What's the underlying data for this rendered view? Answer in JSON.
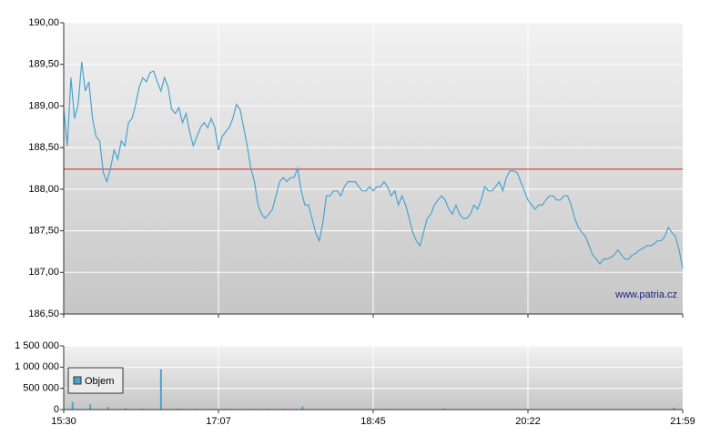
{
  "chart_data": [
    {
      "type": "line",
      "ylim": [
        186.5,
        190
      ],
      "yticks": [
        {
          "value": 186.5,
          "label": "186,50"
        },
        {
          "value": 187,
          "label": "187,00"
        },
        {
          "value": 187.5,
          "label": "187,50"
        },
        {
          "value": 188,
          "label": "188,00"
        },
        {
          "value": 188.5,
          "label": "188,50"
        },
        {
          "value": 189,
          "label": "189,00"
        },
        {
          "value": 189.5,
          "label": "189,50"
        },
        {
          "value": 190,
          "label": "190,00"
        }
      ],
      "grid": true,
      "reference_line": {
        "value": 188.24,
        "color": "#cc2222"
      },
      "annotation": "www.patria.cz",
      "series": [
        {
          "color": "#4aa3cf",
          "values": [
            188.96,
            188.52,
            189.34,
            188.85,
            189.02,
            189.53,
            189.18,
            189.29,
            188.85,
            188.63,
            188.58,
            188.2,
            188.09,
            188.25,
            188.47,
            188.36,
            188.58,
            188.52,
            188.8,
            188.85,
            189.02,
            189.23,
            189.34,
            189.29,
            189.4,
            189.42,
            189.29,
            189.18,
            189.34,
            189.23,
            188.96,
            188.91,
            188.98,
            188.8,
            188.91,
            188.69,
            188.52,
            188.63,
            188.74,
            188.8,
            188.74,
            188.85,
            188.74,
            188.47,
            188.63,
            188.69,
            188.74,
            188.85,
            189.02,
            188.96,
            188.74,
            188.52,
            188.25,
            188.09,
            187.81,
            187.7,
            187.65,
            187.7,
            187.76,
            187.92,
            188.09,
            188.14,
            188.09,
            188.14,
            188.14,
            188.25,
            187.98,
            187.81,
            187.81,
            187.65,
            187.48,
            187.38,
            187.59,
            187.92,
            187.92,
            187.98,
            187.98,
            187.92,
            188.03,
            188.09,
            188.09,
            188.09,
            188.03,
            187.98,
            187.98,
            188.03,
            187.98,
            188.03,
            188.03,
            188.09,
            188.03,
            187.92,
            187.98,
            187.81,
            187.92,
            187.81,
            187.65,
            187.48,
            187.38,
            187.32,
            187.48,
            187.65,
            187.7,
            187.81,
            187.87,
            187.92,
            187.87,
            187.76,
            187.7,
            187.81,
            187.7,
            187.65,
            187.65,
            187.7,
            187.81,
            187.76,
            187.87,
            188.03,
            187.98,
            187.98,
            188.03,
            188.09,
            187.98,
            188.14,
            188.22,
            188.22,
            188.2,
            188.09,
            187.98,
            187.87,
            187.81,
            187.76,
            187.81,
            187.81,
            187.87,
            187.92,
            187.92,
            187.87,
            187.87,
            187.92,
            187.92,
            187.81,
            187.65,
            187.54,
            187.48,
            187.43,
            187.32,
            187.21,
            187.16,
            187.1,
            187.16,
            187.16,
            187.18,
            187.21,
            187.27,
            187.21,
            187.16,
            187.16,
            187.21,
            187.23,
            187.27,
            187.29,
            187.32,
            187.32,
            187.34,
            187.38,
            187.38,
            187.43,
            187.54,
            187.48,
            187.43,
            187.27,
            187.05
          ]
        }
      ]
    },
    {
      "type": "bar",
      "ylim": [
        0,
        1500000
      ],
      "yticks": [
        0,
        {
          "value": 500000,
          "label": "500 000"
        },
        {
          "value": 1000000,
          "label": "1 000 000"
        },
        {
          "value": 1500000,
          "label": "1 500 000"
        }
      ],
      "xticks": [
        "15:30",
        "17:07",
        "18:45",
        "20:22",
        "21:59"
      ],
      "grid": true,
      "legend": "top-left",
      "series": [
        {
          "name": "Objem",
          "color": "#4aa3cf",
          "values": [
            180000,
            120000,
            60000,
            30000,
            20000,
            950000,
            20000,
            15000,
            15000,
            20000,
            15000,
            15000,
            15000,
            70000,
            15000,
            10000,
            10000,
            10000,
            15000,
            10000,
            10000,
            25000,
            10000,
            10000,
            10000,
            15000,
            10000,
            10000,
            10000,
            10000,
            10000,
            10000,
            10000,
            10000,
            40000
          ]
        }
      ]
    }
  ]
}
